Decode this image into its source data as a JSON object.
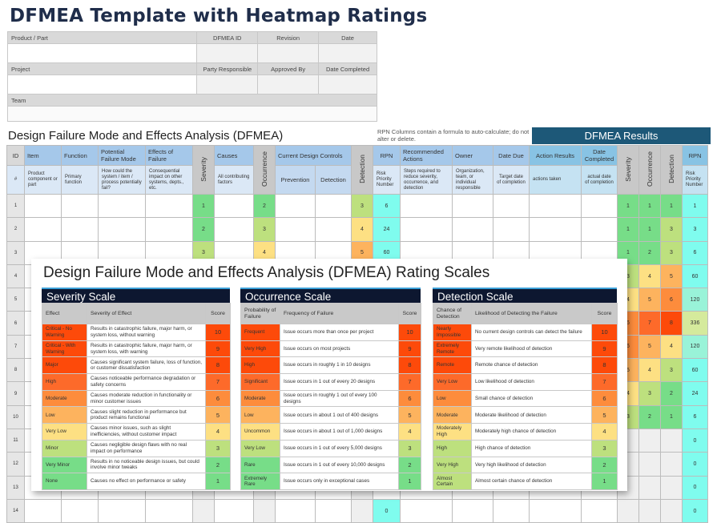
{
  "title": "DFMEA Template with Heatmap Ratings",
  "info": {
    "product_part": "Product / Part",
    "dfmea_id": "DFMEA ID",
    "revision": "Revision",
    "date": "Date",
    "project": "Project",
    "party_responsible": "Party Responsible",
    "approved_by": "Approved By",
    "date_completed": "Date Completed",
    "team": "Team"
  },
  "dfmea_title": "Design Failure Mode and Effects Analysis (DFMEA)",
  "rpn_note": "RPN Columns contain a formula to auto-calculate; do not alter or delete.",
  "results_header": "DFMEA Results",
  "columns": {
    "id": "ID",
    "id_sub": "#",
    "item": "Item",
    "item_sub": "Product component or part",
    "function": "Function",
    "function_sub": "Primary function",
    "failure_mode": "Potential Failure Mode",
    "failure_mode_sub": "How could the system / item / process potentially fail?",
    "effects": "Effects of Failure",
    "effects_sub": "Consequential impact on other systems, depts., etc.",
    "severity": "Severity",
    "causes": "Causes",
    "causes_sub": "All contributing factors",
    "occurrence": "Occurrence",
    "controls": "Current Design Controls",
    "prevention": "Prevention",
    "detection_ctrl": "Detection",
    "detection": "Detection",
    "rpn": "RPN",
    "rpn_sub": "Risk Priority Number",
    "actions": "Recommended Actions",
    "actions_sub": "Steps required to reduce severity, occurrence, and detection",
    "owner": "Owner",
    "owner_sub": "Organization, team, or individual responsible",
    "date_due": "Date Due",
    "date_due_sub": "Target date of completion",
    "action_results": "Action Results",
    "action_results_sub": "actions taken",
    "date_completed": "Date Completed",
    "date_completed_sub": "actual date of completion",
    "r_severity": "Severity",
    "r_occurrence": "Occurrence",
    "r_detection": "Detection",
    "r_rpn": "RPN",
    "r_rpn_sub": "Risk Priority Number"
  },
  "rows": [
    {
      "id": "1",
      "sev": "1",
      "occ": "2",
      "det": "3",
      "rpn": "6",
      "rsev": "1",
      "rocc": "1",
      "rdet": "1",
      "rrpn": "1"
    },
    {
      "id": "2",
      "sev": "2",
      "occ": "3",
      "det": "4",
      "rpn": "24",
      "rsev": "1",
      "rocc": "1",
      "rdet": "3",
      "rrpn": "3"
    },
    {
      "id": "3",
      "sev": "3",
      "occ": "4",
      "det": "5",
      "rpn": "60",
      "rsev": "1",
      "rocc": "2",
      "rdet": "3",
      "rrpn": "6"
    },
    {
      "id": "4",
      "sev": "4",
      "occ": "5",
      "det": "6",
      "rpn": "120",
      "rsev": "3",
      "rocc": "4",
      "rdet": "5",
      "rrpn": "60"
    },
    {
      "id": "5",
      "sev": "",
      "occ": "",
      "det": "",
      "rpn": "",
      "rsev": "4",
      "rocc": "5",
      "rdet": "6",
      "rrpn": "120"
    },
    {
      "id": "6",
      "sev": "",
      "occ": "",
      "det": "",
      "rpn": "",
      "rsev": "6",
      "rocc": "7",
      "rdet": "8",
      "rrpn": "336"
    },
    {
      "id": "7",
      "sev": "",
      "occ": "",
      "det": "",
      "rpn": "",
      "rsev": "6",
      "rocc": "5",
      "rdet": "4",
      "rrpn": "120"
    },
    {
      "id": "8",
      "sev": "",
      "occ": "",
      "det": "",
      "rpn": "",
      "rsev": "5",
      "rocc": "4",
      "rdet": "3",
      "rrpn": "60"
    },
    {
      "id": "9",
      "sev": "",
      "occ": "",
      "det": "",
      "rpn": "",
      "rsev": "4",
      "rocc": "3",
      "rdet": "2",
      "rrpn": "24"
    },
    {
      "id": "10",
      "sev": "",
      "occ": "",
      "det": "",
      "rpn": "",
      "rsev": "3",
      "rocc": "2",
      "rdet": "1",
      "rrpn": "6"
    },
    {
      "id": "11",
      "sev": "",
      "occ": "",
      "det": "",
      "rpn": "",
      "rsev": "",
      "rocc": "",
      "rdet": "",
      "rrpn": "0"
    },
    {
      "id": "12",
      "sev": "",
      "occ": "",
      "det": "",
      "rpn": "",
      "rsev": "",
      "rocc": "",
      "rdet": "",
      "rrpn": "0"
    },
    {
      "id": "13",
      "sev": "",
      "occ": "",
      "det": "",
      "rpn": "",
      "rsev": "",
      "rocc": "",
      "rdet": "",
      "rrpn": "0"
    },
    {
      "id": "14",
      "sev": "",
      "occ": "",
      "det": "",
      "rpn": "0",
      "rsev": "",
      "rocc": "",
      "rdet": "",
      "rrpn": "0"
    }
  ],
  "heat_colors": {
    "1": "#77dd88",
    "2": "#77dd88",
    "3": "#bde07e",
    "4": "#fde083",
    "5": "#fdb35e",
    "6": "#fd8c3c",
    "7": "#fd6a2a",
    "8": "#fd4a0a",
    "9": "#fd4a0a",
    "10": "#fd4a0a",
    "rpn_low": "#7ffcee",
    "rpn_mid": "#99f3d8",
    "rpn_high": "#d5ea9c"
  },
  "overlay": {
    "title": "Design Failure Mode and Effects Analysis (DFMEA) Rating Scales",
    "severity": {
      "title": "Severity Scale",
      "headers": [
        "Effect",
        "Severity of Effect",
        "Score"
      ],
      "rows": [
        {
          "label": "Critical - No Warning",
          "desc": "Results in catastrophic failure, major harm, or system loss, without warning",
          "score": "10"
        },
        {
          "label": "Critical - With Warning",
          "desc": "Results in catastrophic failure, major harm, or system loss, with warning",
          "score": "9"
        },
        {
          "label": "Major",
          "desc": "Causes significant system failure, loss of function, or customer dissatisfaction",
          "score": "8"
        },
        {
          "label": "High",
          "desc": "Causes noticeable performance degradation or safety concerns",
          "score": "7"
        },
        {
          "label": "Moderate",
          "desc": "Causes moderate reduction in functionality or minor customer issues",
          "score": "6"
        },
        {
          "label": "Low",
          "desc": "Causes slight reduction in performance but product remains functional",
          "score": "5"
        },
        {
          "label": "Very Low",
          "desc": "Causes minor issues, such as slight inefficiencies, without customer impact",
          "score": "4"
        },
        {
          "label": "Minor",
          "desc": "Causes negligible design flaws with no real impact on performance",
          "score": "3"
        },
        {
          "label": "Very Minor",
          "desc": "Results in no noticeable design issues, but could involve minor tweaks",
          "score": "2"
        },
        {
          "label": "None",
          "desc": "Causes no effect on performance or safety",
          "score": "1"
        }
      ]
    },
    "occurrence": {
      "title": "Occurrence Scale",
      "headers": [
        "Probability of Failure",
        "Frequency of Failure",
        "Score"
      ],
      "rows": [
        {
          "label": "Frequent",
          "desc": "Issue occurs more than once per project",
          "score": "10"
        },
        {
          "label": "Very High",
          "desc": "Issue occurs on most projects",
          "score": "9"
        },
        {
          "label": "High",
          "desc": "Issue occurs in roughly 1 in 10 designs",
          "score": "8"
        },
        {
          "label": "Significant",
          "desc": "Issue occurs in 1 out of every 20 designs",
          "score": "7"
        },
        {
          "label": "Moderate",
          "desc": "Issue occurs in roughly 1 out of every 100 designs",
          "score": "6"
        },
        {
          "label": "Low",
          "desc": "Issue occurs in about 1 out of 400 designs",
          "score": "5"
        },
        {
          "label": "Uncommon",
          "desc": "Issue occurs in about 1 out of 1,000 designs",
          "score": "4"
        },
        {
          "label": "Very Low",
          "desc": "Issue occurs in 1 out of every 5,000 designs",
          "score": "3"
        },
        {
          "label": "Rare",
          "desc": "Issue occurs in 1 out of every 10,000 designs",
          "score": "2"
        },
        {
          "label": "Extremely Rare",
          "desc": "Issue occurs only in exceptional cases",
          "score": "1"
        }
      ]
    },
    "detection": {
      "title": "Detection Scale",
      "headers": [
        "Chance of Detection",
        "Likelihood of Detecting the Failure",
        "Score"
      ],
      "rows": [
        {
          "label": "Nearly Impossible",
          "desc": "No current design controls can detect the failure",
          "score": "10"
        },
        {
          "label": "Extremely Remote",
          "desc": "Very remote likelihood of detection",
          "score": "9"
        },
        {
          "label": "Remote",
          "desc": "Remote chance of detection",
          "score": "8"
        },
        {
          "label": "Very Low",
          "desc": "Low likelihood of detection",
          "score": "7"
        },
        {
          "label": "Low",
          "desc": "Small chance of detection",
          "score": "6"
        },
        {
          "label": "Moderate",
          "desc": "Moderate likelihood of detection",
          "score": "5"
        },
        {
          "label": "Moderately High",
          "desc": "Moderately high chance of detection",
          "score": "4"
        },
        {
          "label": "High",
          "desc": "High chance of detection",
          "score": "3"
        },
        {
          "label": "Very High",
          "desc": "Very high likelihood of detection",
          "score": "2"
        },
        {
          "label": "Almost Certain",
          "desc": "Almost certain chance of detection",
          "score": "1"
        }
      ]
    }
  }
}
